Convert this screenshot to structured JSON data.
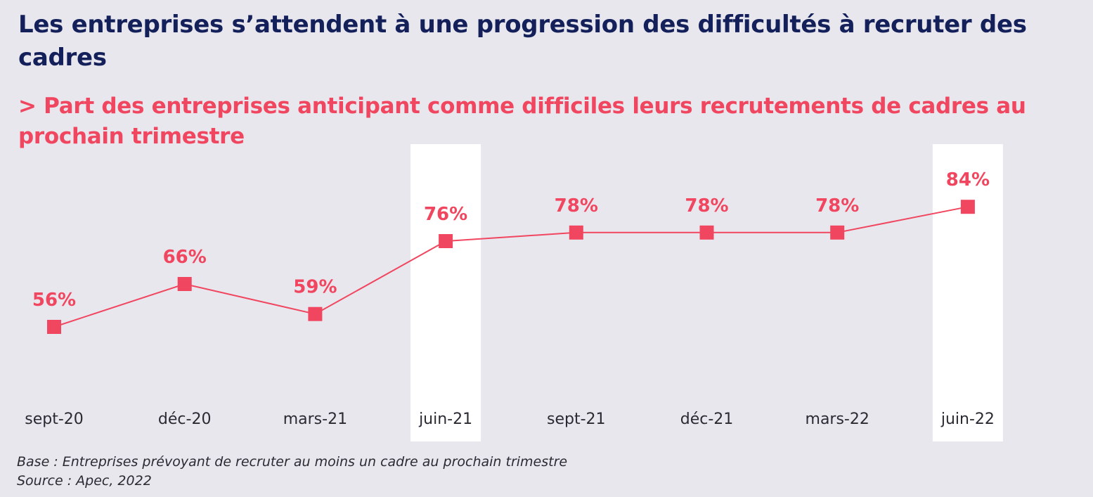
{
  "title": "Les entreprises s’attendent à une progression des difficultés à recruter des cadres",
  "subtitle": "> Part des entreprises anticipant comme difficiles leurs recrutements de cadres au prochain trimestre",
  "footnotes": {
    "base": "Base : Entreprises prévoyant de recruter au moins un cadre au prochain trimestre",
    "source": "Source : Apec, 2022"
  },
  "colors": {
    "background": "#e9e7ee",
    "title": "#13205a",
    "accent": "#f0465f",
    "highlight": "#ffffff",
    "axis_text": "#2a2a33"
  },
  "chart_data": {
    "type": "line",
    "categories": [
      "sept-20",
      "déc-20",
      "mars-21",
      "juin-21",
      "sept-21",
      "déc-21",
      "mars-22",
      "juin-22"
    ],
    "values": [
      56,
      66,
      59,
      76,
      78,
      78,
      78,
      84
    ],
    "value_labels": [
      "56%",
      "66%",
      "59%",
      "76%",
      "78%",
      "78%",
      "78%",
      "84%"
    ],
    "highlighted_categories": [
      "juin-21",
      "juin-22"
    ],
    "marker": "square",
    "grid": false,
    "legend": false
  }
}
